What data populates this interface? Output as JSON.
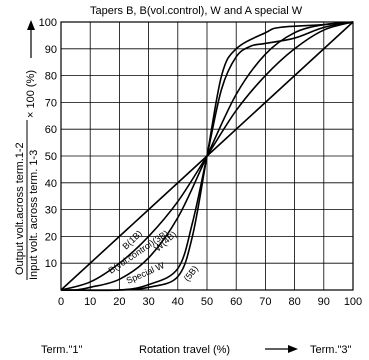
{
  "chart_data": {
    "type": "line",
    "title": "Tapers B, B(vol.control), W and A special W",
    "xlabel": "Rotation travel (%)",
    "x_end_left": "Term.\"1\"",
    "x_end_right": "Term.\"3\"",
    "ylabel_numerator": "Output volt.across term.1-2",
    "ylabel_denominator": "Input volt. across term. 1-3",
    "ylabel_suffix": "× 100 (%)",
    "xlim": [
      0,
      100
    ],
    "ylim": [
      0,
      100
    ],
    "xticks": [
      0,
      10,
      20,
      30,
      40,
      50,
      60,
      70,
      80,
      90,
      100
    ],
    "yticks": [
      10,
      20,
      30,
      40,
      50,
      60,
      70,
      80,
      90,
      100
    ],
    "grid": true,
    "series": [
      {
        "name": "B(1B)",
        "x": [
          0,
          50,
          100
        ],
        "y": [
          0,
          50,
          100
        ]
      },
      {
        "name": "B(vol.control)(3B)",
        "x": [
          0,
          10,
          20,
          30,
          40,
          50,
          60,
          70,
          80,
          90,
          100
        ],
        "y": [
          0,
          3,
          10,
          20,
          33,
          50,
          67,
          80,
          90,
          97,
          100
        ]
      },
      {
        "name": "W(4B)",
        "x": [
          0,
          5,
          10,
          20,
          30,
          40,
          50,
          60,
          70,
          80,
          90,
          100
        ],
        "y": [
          0,
          0,
          1,
          4,
          12,
          27,
          50,
          73,
          88,
          96,
          99,
          100
        ]
      },
      {
        "name": "Special W",
        "x": [
          0,
          20,
          30,
          40,
          45,
          50,
          55,
          60,
          65,
          70,
          80,
          90,
          100
        ],
        "y": [
          0,
          0,
          2,
          8,
          25,
          50,
          75,
          87,
          91,
          92,
          94,
          98,
          100
        ]
      },
      {
        "name": "(5B)",
        "x": [
          0,
          20,
          30,
          40,
          45,
          50,
          55,
          60,
          70,
          75,
          90,
          100
        ],
        "y": [
          0,
          0,
          1,
          5,
          20,
          50,
          80,
          90,
          96,
          98,
          99,
          100
        ]
      }
    ],
    "annotations": [
      "B(1B)",
      "B(vol.control)(3B)",
      "W(4B)",
      "Special W",
      "(5B)"
    ]
  }
}
